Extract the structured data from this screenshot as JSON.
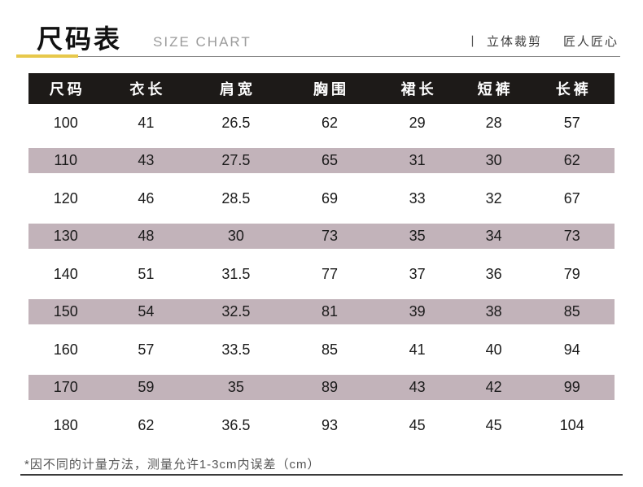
{
  "header": {
    "title_cn": "尺码表",
    "title_en": "SIZE CHART",
    "tagline_divider": "丨",
    "tagline_left": "立体裁剪",
    "tagline_right": "匠人匠心"
  },
  "footer": {
    "note": "*因不同的计量方法，测量允许1-3cm内误差（cm）"
  },
  "colors": {
    "accent_gold": "#e7c84b",
    "header_bar": "#1d1a18",
    "stripe": "#c2b3ba"
  },
  "chart_data": {
    "type": "table",
    "title": "尺码表 SIZE CHART",
    "columns": [
      "尺码",
      "衣长",
      "肩宽",
      "胸围",
      "裙长",
      "短裤",
      "长裤"
    ],
    "rows": [
      [
        "100",
        "41",
        "26.5",
        "62",
        "29",
        "28",
        "57"
      ],
      [
        "110",
        "43",
        "27.5",
        "65",
        "31",
        "30",
        "62"
      ],
      [
        "120",
        "46",
        "28.5",
        "69",
        "33",
        "32",
        "67"
      ],
      [
        "130",
        "48",
        "30",
        "73",
        "35",
        "34",
        "73"
      ],
      [
        "140",
        "51",
        "31.5",
        "77",
        "37",
        "36",
        "79"
      ],
      [
        "150",
        "54",
        "32.5",
        "81",
        "39",
        "38",
        "85"
      ],
      [
        "160",
        "57",
        "33.5",
        "85",
        "41",
        "40",
        "94"
      ],
      [
        "170",
        "59",
        "35",
        "89",
        "43",
        "42",
        "99"
      ],
      [
        "180",
        "62",
        "36.5",
        "93",
        "45",
        "45",
        "104"
      ]
    ],
    "unit": "cm",
    "striped_rows": [
      1,
      3,
      5,
      7
    ]
  }
}
